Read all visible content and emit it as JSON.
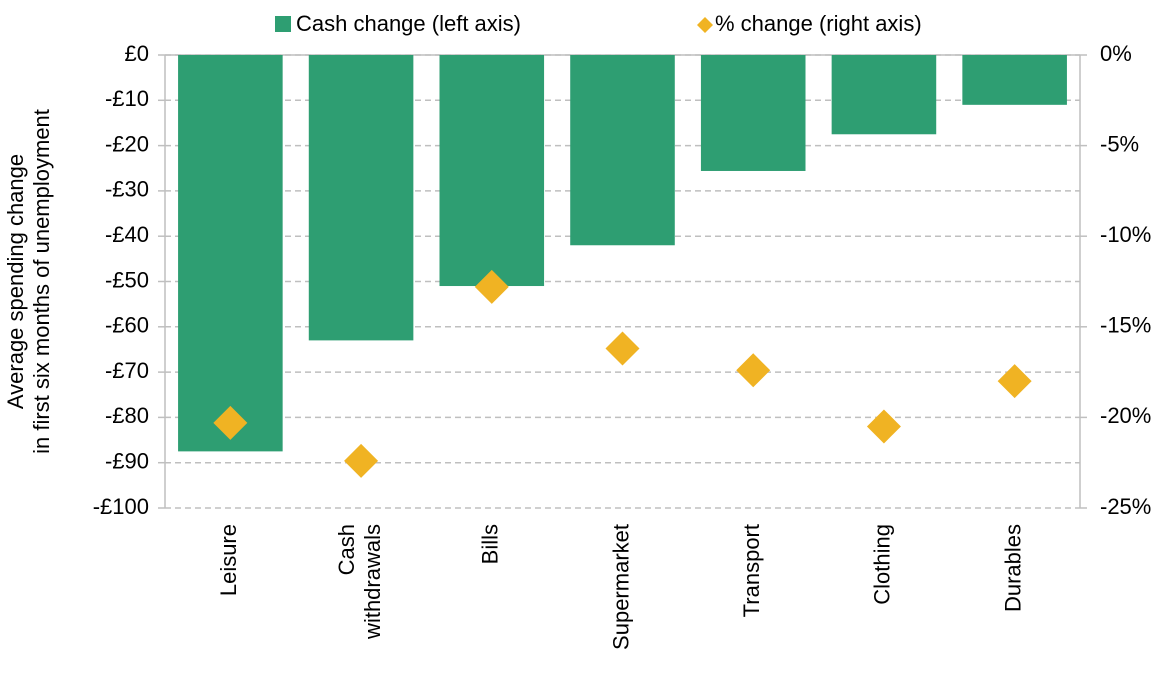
{
  "chart_data": {
    "type": "bar",
    "y_label": [
      "Average spending change",
      "in first six months of unemployment"
    ],
    "categories": [
      "Leisure",
      "Cash\nwithdrawals",
      "Bills",
      "Supermarket",
      "Transport",
      "Clothing",
      "Durables"
    ],
    "series": [
      {
        "name": "Cash change (left axis)",
        "color": "#2e9e72",
        "values": [
          -87.5,
          -63,
          -51,
          -42,
          -25.6,
          -17.5,
          -11
        ]
      },
      {
        "name": "% change (right axis)",
        "color": "#f0b323",
        "axis": "y2",
        "marker": "diamond",
        "values": [
          -20.3,
          -22.4,
          -12.8,
          -16.2,
          -17.4,
          -20.5,
          -18
        ]
      }
    ],
    "ylim": [
      -100,
      0
    ],
    "yticks": [
      {
        "value": 0,
        "label": "£0"
      },
      {
        "value": -10,
        "label": "-£10"
      },
      {
        "value": -20,
        "label": "-£20"
      },
      {
        "value": -30,
        "label": "-£30"
      },
      {
        "value": -40,
        "label": "-£40"
      },
      {
        "value": -50,
        "label": "-£50"
      },
      {
        "value": -60,
        "label": "-£60"
      },
      {
        "value": -70,
        "label": "-£70"
      },
      {
        "value": -80,
        "label": "-£80"
      },
      {
        "value": -90,
        "label": "-£90"
      },
      {
        "value": -100,
        "label": "-£100"
      }
    ],
    "y2lim": [
      -25,
      0
    ],
    "y2ticks": [
      {
        "value": 0,
        "label": "0%"
      },
      {
        "value": -5,
        "label": "-5%"
      },
      {
        "value": -10,
        "label": "-10%"
      },
      {
        "value": -15,
        "label": "-15%"
      },
      {
        "value": -20,
        "label": "-20%"
      },
      {
        "value": -25,
        "label": "-25%"
      }
    ],
    "grid": true,
    "legend": "top"
  }
}
